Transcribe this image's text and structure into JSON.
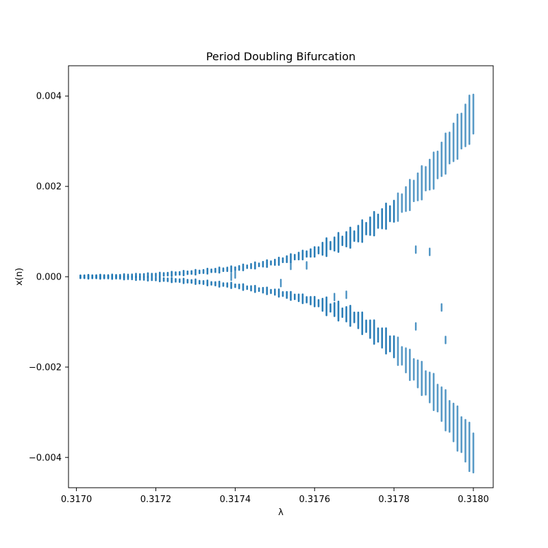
{
  "chart_data": {
    "type": "scatter",
    "title": "Period Doubling Bifurcation",
    "xlabel": "λ",
    "ylabel": "x(n)",
    "xlim": [
      0.31698,
      0.31805
    ],
    "ylim": [
      -0.00467,
      0.00467
    ],
    "x_ticks": [
      {
        "value": 0.317,
        "label": "0.3170"
      },
      {
        "value": 0.3172,
        "label": "0.3172"
      },
      {
        "value": 0.3174,
        "label": "0.3174"
      },
      {
        "value": 0.3176,
        "label": "0.3176"
      },
      {
        "value": 0.3178,
        "label": "0.3178"
      },
      {
        "value": 0.318,
        "label": "0.3180"
      }
    ],
    "y_ticks": [
      {
        "value": 0.004,
        "label": "0.004"
      },
      {
        "value": 0.002,
        "label": "0.002"
      },
      {
        "value": 0.0,
        "label": "0.000"
      },
      {
        "value": -0.002,
        "label": "−0.002"
      },
      {
        "value": -0.004,
        "label": "−0.004"
      }
    ],
    "grid": false,
    "legend": "none",
    "color": "#1f77b4",
    "lambda_start": 0.31701,
    "lambda_end": 0.318,
    "lambda_count": 100,
    "bands": [
      {
        "lambda": 0.31701,
        "ymin": -5e-05,
        "ymax": 5e-05
      },
      {
        "lambda": 0.3171,
        "ymin": -5e-05,
        "ymax": 5e-05
      },
      {
        "lambda": 0.3172,
        "ymin": -6e-05,
        "ymax": 6e-05
      },
      {
        "lambda": 0.3173,
        "ymin": -7e-05,
        "ymax": 7e-05
      },
      {
        "lambda": 0.3174,
        "ymin": -0.00012,
        "ymax": 0.00012
      },
      {
        "lambda": 0.3175,
        "ymin": -0.00028,
        "ymax": 0.00028
      },
      {
        "lambda": 0.3176,
        "ymin": -0.00045,
        "ymax": 0.00045
      },
      {
        "lambda": 0.3177,
        "ymin": -0.00095,
        "ymax": 0.00095
      },
      {
        "lambda": 0.3178,
        "ymin": -0.0016,
        "ymax": 0.0016
      },
      {
        "lambda": 0.3179,
        "ymin": -0.0026,
        "ymax": 0.0026
      },
      {
        "lambda": 0.318,
        "ymin": -0.0042,
        "ymax": 0.0042
      }
    ],
    "upper_branch": [
      {
        "lambda": 0.31701,
        "y": 0.0
      },
      {
        "lambda": 0.3171,
        "y": 1e-05
      },
      {
        "lambda": 0.3172,
        "y": 4e-05
      },
      {
        "lambda": 0.3173,
        "y": 0.0001
      },
      {
        "lambda": 0.3174,
        "y": 0.00018
      },
      {
        "lambda": 0.3175,
        "y": 0.00032
      },
      {
        "lambda": 0.3176,
        "y": 0.00055
      },
      {
        "lambda": 0.3177,
        "y": 0.0009
      },
      {
        "lambda": 0.3178,
        "y": 0.00145
      },
      {
        "lambda": 0.3179,
        "y": 0.00235
      },
      {
        "lambda": 0.318,
        "y": 0.0036
      }
    ],
    "lower_branch": [
      {
        "lambda": 0.31701,
        "y": 0.0
      },
      {
        "lambda": 0.3171,
        "y": -1e-05
      },
      {
        "lambda": 0.3172,
        "y": -5e-05
      },
      {
        "lambda": 0.3173,
        "y": -0.00011
      },
      {
        "lambda": 0.3174,
        "y": -0.0002
      },
      {
        "lambda": 0.3175,
        "y": -0.00034
      },
      {
        "lambda": 0.3176,
        "y": -0.00055
      },
      {
        "lambda": 0.3177,
        "y": -0.0009
      },
      {
        "lambda": 0.3178,
        "y": -0.00155
      },
      {
        "lambda": 0.3179,
        "y": -0.00255
      },
      {
        "lambda": 0.318,
        "y": -0.0039
      }
    ],
    "outliers": [
      {
        "lambda": 0.31739,
        "y": 0.0
      },
      {
        "lambda": 0.3174,
        "y": 5e-05
      },
      {
        "lambda": 0.317515,
        "y": -0.00014
      },
      {
        "lambda": 0.31754,
        "y": 0.00024
      },
      {
        "lambda": 0.31758,
        "y": 0.00025
      },
      {
        "lambda": 0.31765,
        "y": -0.00045
      },
      {
        "lambda": 0.31768,
        "y": -0.0004
      },
      {
        "lambda": 0.317855,
        "y": -0.0011
      },
      {
        "lambda": 0.317855,
        "y": 0.0006
      },
      {
        "lambda": 0.31789,
        "y": 0.00055
      },
      {
        "lambda": 0.31792,
        "y": -0.00068
      },
      {
        "lambda": 0.31793,
        "y": -0.0014
      }
    ]
  }
}
